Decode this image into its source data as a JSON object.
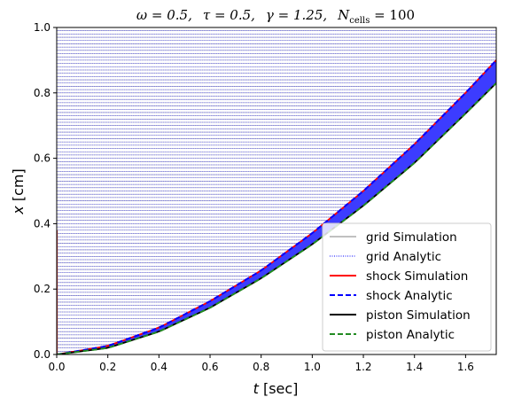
{
  "chart_data": {
    "type": "line",
    "title": "ω = 0.5,   τ = 0.5,   γ = 1.25,   N_cells = 100",
    "title_parts": {
      "omega": "ω = 0.5,",
      "tau": "τ = 0.5,",
      "gamma": "γ = 1.25,",
      "ncells_symbol": "N",
      "ncells_sub": "cells",
      "ncells_value": " = 100"
    },
    "xlabel": {
      "var": "t",
      "unit": " [sec]"
    },
    "ylabel": {
      "var": "x",
      "unit": " [cm]"
    },
    "xlim": [
      0,
      1.72
    ],
    "ylim": [
      0,
      1.0
    ],
    "xticks": [
      "0.0",
      "0.2",
      "0.4",
      "0.6",
      "0.8",
      "1.0",
      "1.2",
      "1.4",
      "1.6"
    ],
    "yticks": [
      "0.0",
      "0.2",
      "0.4",
      "0.6",
      "0.8",
      "1.0"
    ],
    "grid": false,
    "n_cells": 100,
    "legend_position": "lower-right",
    "series": [
      {
        "name": "grid Simulation",
        "color": "#808080",
        "style": "solid"
      },
      {
        "name": "grid Analytic",
        "color": "#0000ff",
        "style": "dotted"
      },
      {
        "name": "shock Simulation",
        "color": "#ff0000",
        "style": "solid",
        "x": [
          0.0,
          0.2,
          0.4,
          0.6,
          0.8,
          1.0,
          1.2,
          1.4,
          1.6,
          1.72
        ],
        "y": [
          0.0,
          0.026,
          0.082,
          0.163,
          0.257,
          0.371,
          0.5,
          0.643,
          0.8,
          0.9
        ]
      },
      {
        "name": "shock Analytic",
        "color": "#0000ff",
        "style": "dashed",
        "x": [
          0.0,
          0.2,
          0.4,
          0.6,
          0.8,
          1.0,
          1.2,
          1.4,
          1.6,
          1.72
        ],
        "y": [
          0.0,
          0.026,
          0.082,
          0.163,
          0.257,
          0.371,
          0.5,
          0.643,
          0.8,
          0.9
        ]
      },
      {
        "name": "piston Simulation",
        "color": "#000000",
        "style": "solid",
        "x": [
          0.0,
          0.2,
          0.4,
          0.6,
          0.8,
          1.0,
          1.2,
          1.4,
          1.6,
          1.72
        ],
        "y": [
          0.0,
          0.02,
          0.07,
          0.143,
          0.233,
          0.337,
          0.455,
          0.586,
          0.737,
          0.83
        ]
      },
      {
        "name": "piston Analytic",
        "color": "#228b22",
        "style": "dashed",
        "x": [
          0.0,
          0.2,
          0.4,
          0.6,
          0.8,
          1.0,
          1.2,
          1.4,
          1.6,
          1.72
        ],
        "y": [
          0.0,
          0.02,
          0.07,
          0.143,
          0.233,
          0.337,
          0.455,
          0.586,
          0.737,
          0.83
        ]
      }
    ]
  }
}
